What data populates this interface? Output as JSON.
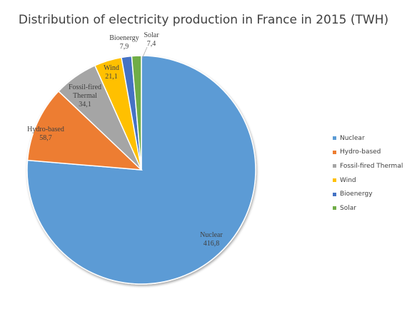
{
  "chart_data": {
    "type": "pie",
    "title": "Distribution of electricity production in France in 2015 (TWH)",
    "slices": [
      {
        "name": "Nuclear",
        "value": 416.8,
        "value_label": "416,8",
        "label_lines": [
          "Nuclear"
        ],
        "color": "#5b9bd5"
      },
      {
        "name": "Hydro-based",
        "value": 58.7,
        "value_label": "58,7",
        "label_lines": [
          "Hydro-based"
        ],
        "color": "#ed7d31"
      },
      {
        "name": "Fossil-fired Thermal",
        "value": 34.1,
        "value_label": "34,1",
        "label_lines": [
          "Fossil-fired",
          "Thermal"
        ],
        "color": "#a5a5a5"
      },
      {
        "name": "Wind",
        "value": 21.1,
        "value_label": "21,1",
        "label_lines": [
          "Wind"
        ],
        "color": "#ffc000"
      },
      {
        "name": "Bioenergy",
        "value": 7.9,
        "value_label": "7,9",
        "label_lines": [
          "Bioenergy"
        ],
        "color": "#4472c4"
      },
      {
        "name": "Solar",
        "value": 7.4,
        "value_label": "7,4",
        "label_lines": [
          "Solar"
        ],
        "color": "#70ad47"
      }
    ],
    "legend_position": "right"
  }
}
